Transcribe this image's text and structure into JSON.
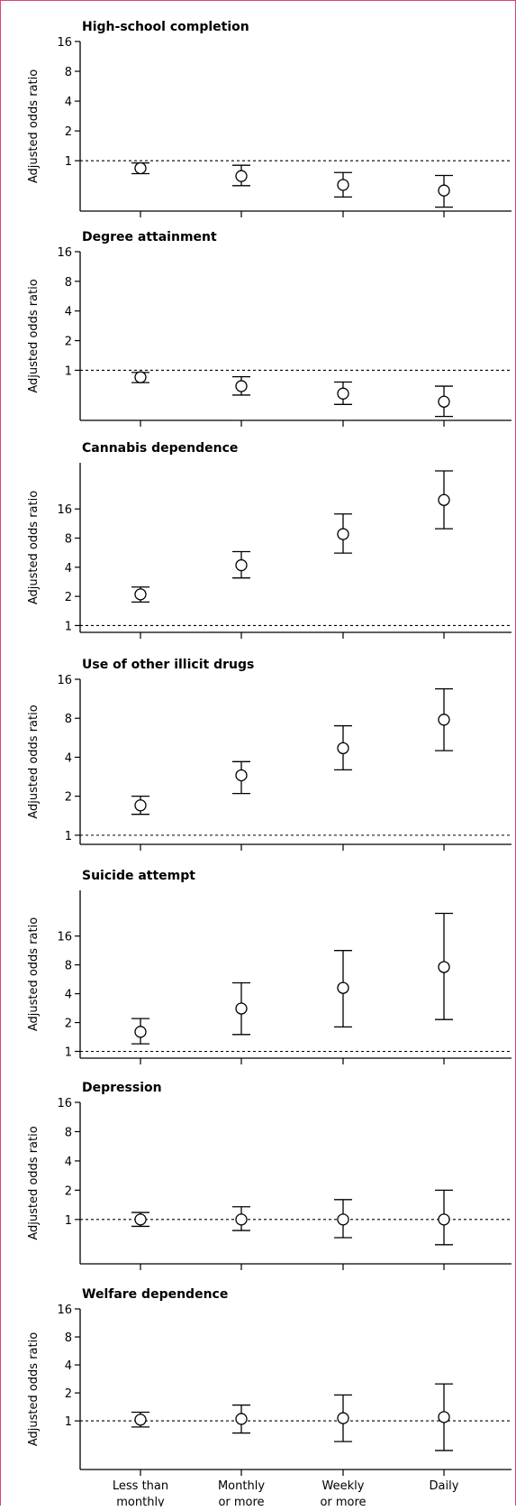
{
  "chart_data": {
    "type": "scatter",
    "subtype": "point-estimate-with-error-bars",
    "y_scale": "log2",
    "ylabel": "Adjusted odds ratio",
    "categories": [
      [
        "Less than",
        "monthly"
      ],
      [
        "Monthly",
        "or more"
      ],
      [
        "Weekly",
        "or more"
      ],
      [
        "Daily"
      ]
    ],
    "reference_line": 1,
    "panels": [
      {
        "title": "High-school completion",
        "ylim": [
          0.31,
          16
        ],
        "ticks": [
          1,
          2,
          4,
          8,
          16
        ],
        "points": [
          {
            "or": 0.84,
            "lo": 0.74,
            "hi": 0.95
          },
          {
            "or": 0.7,
            "lo": 0.56,
            "hi": 0.9
          },
          {
            "or": 0.57,
            "lo": 0.43,
            "hi": 0.76
          },
          {
            "or": 0.5,
            "lo": 0.34,
            "hi": 0.71
          }
        ]
      },
      {
        "title": "Degree attainment",
        "ylim": [
          0.31,
          16
        ],
        "ticks": [
          1,
          2,
          4,
          8,
          16
        ],
        "points": [
          {
            "or": 0.85,
            "lo": 0.75,
            "hi": 0.95
          },
          {
            "or": 0.69,
            "lo": 0.56,
            "hi": 0.86
          },
          {
            "or": 0.58,
            "lo": 0.45,
            "hi": 0.76
          },
          {
            "or": 0.48,
            "lo": 0.34,
            "hi": 0.69
          }
        ]
      },
      {
        "title": "Cannabis dependence",
        "ylim": [
          0.85,
          48
        ],
        "ticks": [
          1,
          2,
          4,
          8,
          16
        ],
        "points": [
          {
            "or": 2.1,
            "lo": 1.75,
            "hi": 2.5
          },
          {
            "or": 4.2,
            "lo": 3.1,
            "hi": 5.8
          },
          {
            "or": 8.8,
            "lo": 5.6,
            "hi": 14.2
          },
          {
            "or": 19.8,
            "lo": 10.0,
            "hi": 39.6
          }
        ]
      },
      {
        "title": "Use of other illicit drugs",
        "ylim": [
          0.85,
          16
        ],
        "ticks": [
          1,
          2,
          4,
          8,
          16
        ],
        "points": [
          {
            "or": 1.7,
            "lo": 1.45,
            "hi": 2.0
          },
          {
            "or": 2.9,
            "lo": 2.1,
            "hi": 3.7
          },
          {
            "or": 4.7,
            "lo": 3.2,
            "hi": 7.0
          },
          {
            "or": 7.8,
            "lo": 4.5,
            "hi": 13.5
          }
        ]
      },
      {
        "title": "Suicide attempt",
        "ylim": [
          0.85,
          48
        ],
        "ticks": [
          1,
          2,
          4,
          8,
          16
        ],
        "points": [
          {
            "or": 1.6,
            "lo": 1.2,
            "hi": 2.2
          },
          {
            "or": 2.8,
            "lo": 1.5,
            "hi": 5.2
          },
          {
            "or": 4.6,
            "lo": 1.8,
            "hi": 11.3
          },
          {
            "or": 7.6,
            "lo": 2.15,
            "hi": 27.6
          }
        ]
      },
      {
        "title": "Depression",
        "ylim": [
          0.35,
          16
        ],
        "ticks": [
          1,
          2,
          4,
          8,
          16
        ],
        "points": [
          {
            "or": 1.0,
            "lo": 0.85,
            "hi": 1.18
          },
          {
            "or": 1.0,
            "lo": 0.77,
            "hi": 1.35
          },
          {
            "or": 1.0,
            "lo": 0.65,
            "hi": 1.6
          },
          {
            "or": 1.0,
            "lo": 0.55,
            "hi": 2.0
          }
        ]
      },
      {
        "title": "Welfare dependence",
        "ylim": [
          0.3,
          16
        ],
        "ticks": [
          1,
          2,
          4,
          8,
          16
        ],
        "points": [
          {
            "or": 1.03,
            "lo": 0.86,
            "hi": 1.24
          },
          {
            "or": 1.05,
            "lo": 0.74,
            "hi": 1.48
          },
          {
            "or": 1.07,
            "lo": 0.6,
            "hi": 1.9
          },
          {
            "or": 1.1,
            "lo": 0.48,
            "hi": 2.5
          }
        ]
      }
    ]
  }
}
